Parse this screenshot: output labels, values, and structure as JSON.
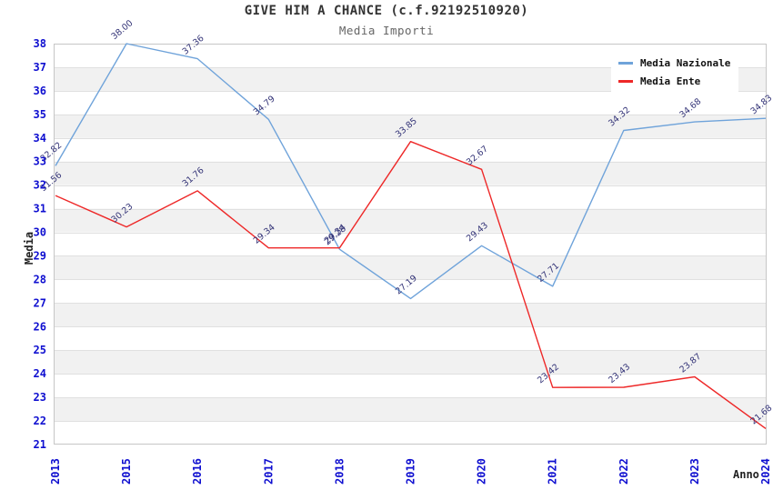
{
  "chart_data": {
    "type": "line",
    "title": "GIVE HIM A CHANCE (c.f.92192510920)",
    "subtitle": "Media Importi",
    "xlabel": "Anno",
    "ylabel": "Media",
    "categories": [
      "2013",
      "2015",
      "2016",
      "2017",
      "2018",
      "2019",
      "2020",
      "2021",
      "2022",
      "2023",
      "2024"
    ],
    "series": [
      {
        "name": "Media Nazionale",
        "color": "#6fa3da",
        "values": [
          32.82,
          38.0,
          37.36,
          34.79,
          29.28,
          27.19,
          29.43,
          27.71,
          34.32,
          34.68,
          34.83
        ]
      },
      {
        "name": "Media Ente",
        "color": "#ee2828",
        "values": [
          31.56,
          30.23,
          31.76,
          29.34,
          29.34,
          33.85,
          32.67,
          23.42,
          23.43,
          23.87,
          21.68
        ]
      }
    ],
    "ylim": [
      21,
      38
    ],
    "yticks": [
      21,
      22,
      23,
      24,
      25,
      26,
      27,
      28,
      29,
      30,
      31,
      32,
      33,
      34,
      35,
      36,
      37,
      38
    ],
    "data_labels_format": "0.00",
    "legend_position": "top-right",
    "grid": true,
    "colors": {
      "tick_label": "#0f0fd0",
      "data_label": "#333377",
      "band": "#f1f1f1",
      "gridline": "#e0e0e0",
      "plot_border": "#c6c6c6",
      "title": "#333333",
      "subtitle": "#666666",
      "legend_text": "#111111",
      "background": "#ffffff"
    }
  }
}
